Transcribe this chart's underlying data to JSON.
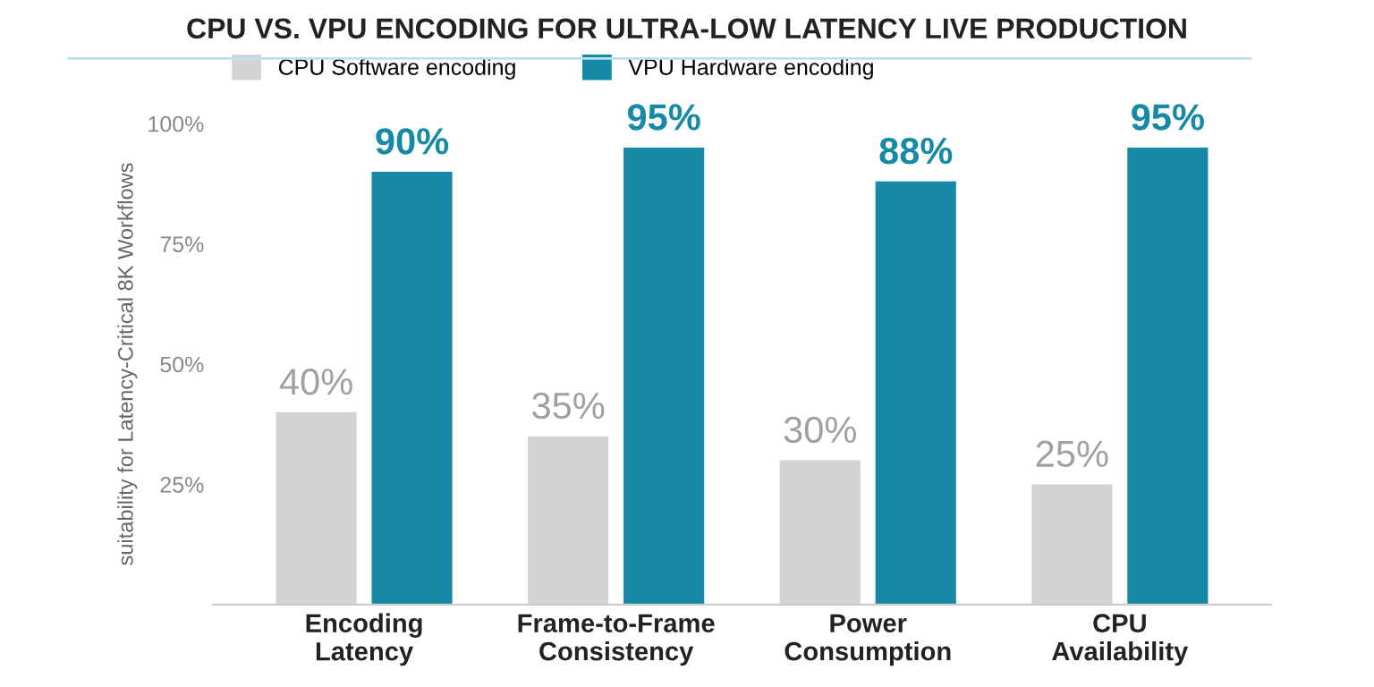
{
  "chart_data": {
    "type": "bar",
    "title": "CPU VS. VPU ENCODING FOR ULTRA-LOW LATENCY LIVE PRODUCTION",
    "ylabel": "suitability for Latency-Critical 8K Workflows",
    "categories": [
      "Encoding\nLatency",
      "Frame-to-Frame\nConsistency",
      "Power\nConsumption",
      "CPU\nAvailability"
    ],
    "series": [
      {
        "name": "CPU Software encoding",
        "color": "#d3d3d3",
        "values": [
          40,
          35,
          30,
          25
        ],
        "value_labels": [
          "40%",
          "35%",
          "30%",
          "25%"
        ]
      },
      {
        "name": "VPU Hardware encoding",
        "color": "#1589a6",
        "values": [
          90,
          95,
          88,
          95
        ],
        "value_labels": [
          "90%",
          "95%",
          "88%",
          "95%"
        ]
      }
    ],
    "ylim": [
      0,
      100
    ],
    "yticks": [
      {
        "value": 25,
        "label": "25%"
      },
      {
        "value": 50,
        "label": "50%"
      },
      {
        "value": 75,
        "label": "75%"
      },
      {
        "value": 100,
        "label": "100%"
      }
    ],
    "grid": false,
    "legend": "top left"
  }
}
